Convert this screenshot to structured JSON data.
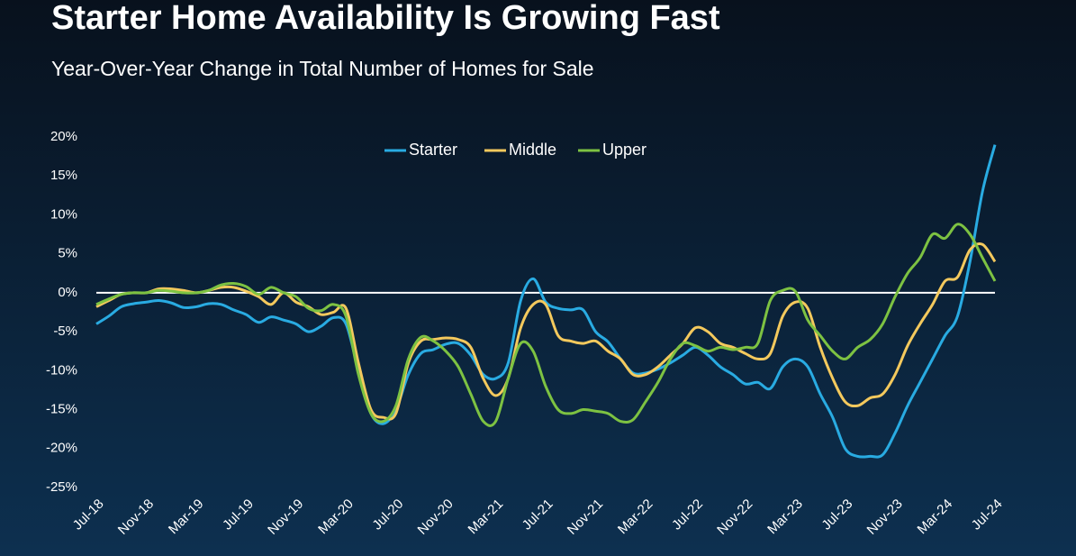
{
  "chart_data": {
    "type": "line",
    "title": "Starter Home Availability Is Growing Fast",
    "subtitle": "Year-Over-Year Change in Total Number of Homes for Sale",
    "categories": [
      "Jul-18",
      null,
      null,
      null,
      "Nov-18",
      null,
      null,
      null,
      "Mar-19",
      null,
      null,
      null,
      "Jul-19",
      null,
      null,
      null,
      "Nov-19",
      null,
      null,
      null,
      "Mar-20",
      null,
      null,
      null,
      "Jul-20",
      null,
      null,
      null,
      "Nov-20",
      null,
      null,
      null,
      "Mar-21",
      null,
      null,
      null,
      "Jul-21",
      null,
      null,
      null,
      "Nov-21",
      null,
      null,
      null,
      "Mar-22",
      null,
      null,
      null,
      "Jul-22",
      null,
      null,
      null,
      "Nov-22",
      null,
      null,
      null,
      "Mar-23",
      null,
      null,
      null,
      "Jul-23",
      null,
      null,
      null,
      "Nov-23",
      null,
      null,
      null,
      "Mar-24",
      null,
      null,
      null,
      "Jul-24"
    ],
    "series": [
      {
        "name": "Starter",
        "color": "#29abe2",
        "values": [
          -4,
          -3,
          -1.8,
          -1.4,
          -1.2,
          -1,
          -1.3,
          -1.9,
          -1.8,
          -1.4,
          -1.5,
          -2.2,
          -2.8,
          -3.8,
          -3.1,
          -3.5,
          -4,
          -5,
          -4.3,
          -3.2,
          -4,
          -10,
          -15.5,
          -16.8,
          -15,
          -10.5,
          -7.8,
          -7.3,
          -6.6,
          -6.5,
          -8,
          -10.5,
          -11,
          -9,
          -1,
          1.8,
          -1.2,
          -2,
          -2.2,
          -2.2,
          -5,
          -6.3,
          -8.5,
          -10.3,
          -10.3,
          -9.8,
          -9,
          -8,
          -7,
          -8,
          -9.5,
          -10.5,
          -11.7,
          -11.5,
          -12.3,
          -9.5,
          -8.5,
          -9.5,
          -13,
          -16,
          -20,
          -21,
          -21,
          -20.8,
          -18,
          -14.5,
          -11.5,
          -8.5,
          -5.5,
          -3,
          4,
          13,
          19
        ]
      },
      {
        "name": "Middle",
        "color": "#f4c95d",
        "values": [
          -1.8,
          -1,
          -0.2,
          0,
          0,
          0.5,
          0.5,
          0.3,
          0,
          0.3,
          0.7,
          0.7,
          0.2,
          -0.5,
          -1.5,
          0,
          -1.2,
          -1.8,
          -2.8,
          -2.5,
          -2,
          -9,
          -15,
          -16,
          -15.5,
          -9,
          -6.2,
          -6,
          -5.8,
          -6,
          -7,
          -11,
          -13.2,
          -11,
          -4.5,
          -1.5,
          -1.5,
          -5.5,
          -6.2,
          -6.5,
          -6.2,
          -7.5,
          -8.5,
          -10.5,
          -10.5,
          -9.5,
          -8,
          -6.5,
          -4.5,
          -5,
          -6.5,
          -7,
          -7.8,
          -8.5,
          -7.8,
          -3,
          -1.2,
          -2,
          -7,
          -11,
          -14,
          -14.5,
          -13.5,
          -13,
          -10.5,
          -6.8,
          -4,
          -1.5,
          1.5,
          2,
          5.5,
          6.2,
          4
        ]
      },
      {
        "name": "Upper",
        "color": "#7dc242",
        "values": [
          -1.5,
          -0.8,
          -0.2,
          0,
          0,
          0.3,
          0.2,
          0,
          0,
          0.3,
          1,
          1.2,
          0.8,
          -0.2,
          0.7,
          0,
          -0.5,
          -2,
          -2.3,
          -1.5,
          -3,
          -10.5,
          -15.5,
          -16.5,
          -14.5,
          -8.5,
          -5.7,
          -6.2,
          -7.5,
          -9.5,
          -13,
          -16.5,
          -16.5,
          -11,
          -6.5,
          -7.5,
          -12,
          -15,
          -15.5,
          -15,
          -15.2,
          -15.5,
          -16.5,
          -16.3,
          -14,
          -11.5,
          -8.5,
          -6.5,
          -6.8,
          -7.5,
          -7,
          -7.3,
          -7,
          -6.5,
          -1,
          0.3,
          0.2,
          -3.5,
          -5.5,
          -7.5,
          -8.5,
          -7,
          -6,
          -4,
          -0.5,
          2.5,
          4.5,
          7.5,
          7,
          8.8,
          7.5,
          4.5,
          1.5
        ]
      }
    ],
    "ylim": [
      -25,
      20
    ],
    "yticks": [
      {
        "value": -25,
        "label": "-25%"
      },
      {
        "value": -20,
        "label": "-20%"
      },
      {
        "value": -15,
        "label": "-15%"
      },
      {
        "value": -10,
        "label": "-10%"
      },
      {
        "value": -5,
        "label": "-5%"
      },
      {
        "value": 0,
        "label": "0%"
      },
      {
        "value": 5,
        "label": "5%"
      },
      {
        "value": 10,
        "label": "10%"
      },
      {
        "value": 15,
        "label": "15%"
      },
      {
        "value": 20,
        "label": "20%"
      }
    ],
    "zero_line": true,
    "legend": "top"
  }
}
